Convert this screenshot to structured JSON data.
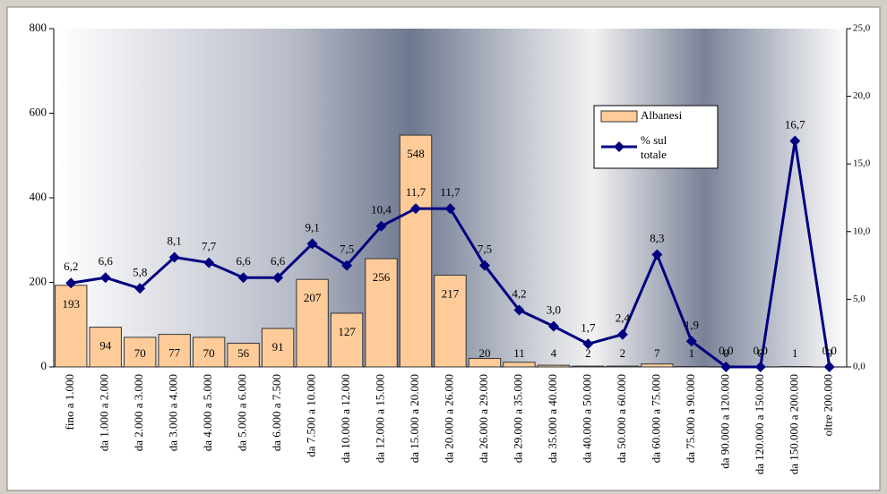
{
  "chart_data": {
    "type": "bar_line",
    "categories": [
      "fino a 1.000",
      "da 1.000 a 2.000",
      "da 2.000 a 3.000",
      "da 3.000 a 4.000",
      "da 4.000 a 5.000",
      "da 5.000 a 6.000",
      "da 6.000 a 7.500",
      "da 7.500 a 10.000",
      "da 10.000 a 12.000",
      "da 12.000 a 15.000",
      "da 15.000 a 20.000",
      "da 20.000 a 26.000",
      "da 26.000 a 29.000",
      "da 29.000 a 35.000",
      "da 35.000 a 40.000",
      "da 40.000 a 50.000",
      "da 50.000 a 60.000",
      "da 60.000 a 75.000",
      "da 75.000 a 90.000",
      "da 90.000 a 120.000",
      "da 120.000 a 150.000",
      "da 150.000 a 200.000",
      "oltre 200.000"
    ],
    "series": [
      {
        "name": "Albanesi",
        "color": "#ffcc99",
        "type": "bar",
        "values": [
          193,
          94,
          70,
          77,
          70,
          56,
          91,
          207,
          127,
          256,
          548,
          217,
          20,
          11,
          4,
          2,
          2,
          7,
          1,
          0,
          0,
          1,
          0
        ]
      },
      {
        "name": "% sul totale",
        "color": "#000080",
        "type": "line",
        "axis": "y2",
        "values": [
          6.2,
          6.6,
          5.8,
          8.1,
          7.7,
          6.6,
          6.6,
          9.1,
          7.5,
          10.4,
          11.7,
          11.7,
          7.5,
          4.2,
          3.0,
          1.7,
          2.4,
          8.3,
          1.9,
          0.0,
          0.0,
          16.7,
          0.0
        ],
        "value_labels": [
          "6,2",
          "6,6",
          "5,8",
          "8,1",
          "7,7",
          "6,6",
          "6,6",
          "9,1",
          "7,5",
          "10,4",
          "11,7",
          "11,7",
          "7,5",
          "4,2",
          "3,0",
          "1,7",
          "2,4",
          "8,3",
          "1,9",
          "0,0",
          "0,0",
          "16,7",
          "0,0"
        ]
      }
    ],
    "ylim": [
      0,
      800
    ],
    "yticks": [
      0,
      200,
      400,
      600,
      800
    ],
    "y2lim": [
      0,
      25
    ],
    "y2ticks": [
      {
        "value": 0,
        "label": "0,0"
      },
      {
        "value": 5,
        "label": "5,0"
      },
      {
        "value": 10,
        "label": "10,0"
      },
      {
        "value": 15,
        "label": "15,0"
      },
      {
        "value": 20,
        "label": "20,0"
      },
      {
        "value": 25,
        "label": "25,0"
      }
    ],
    "legend": "upper right"
  }
}
